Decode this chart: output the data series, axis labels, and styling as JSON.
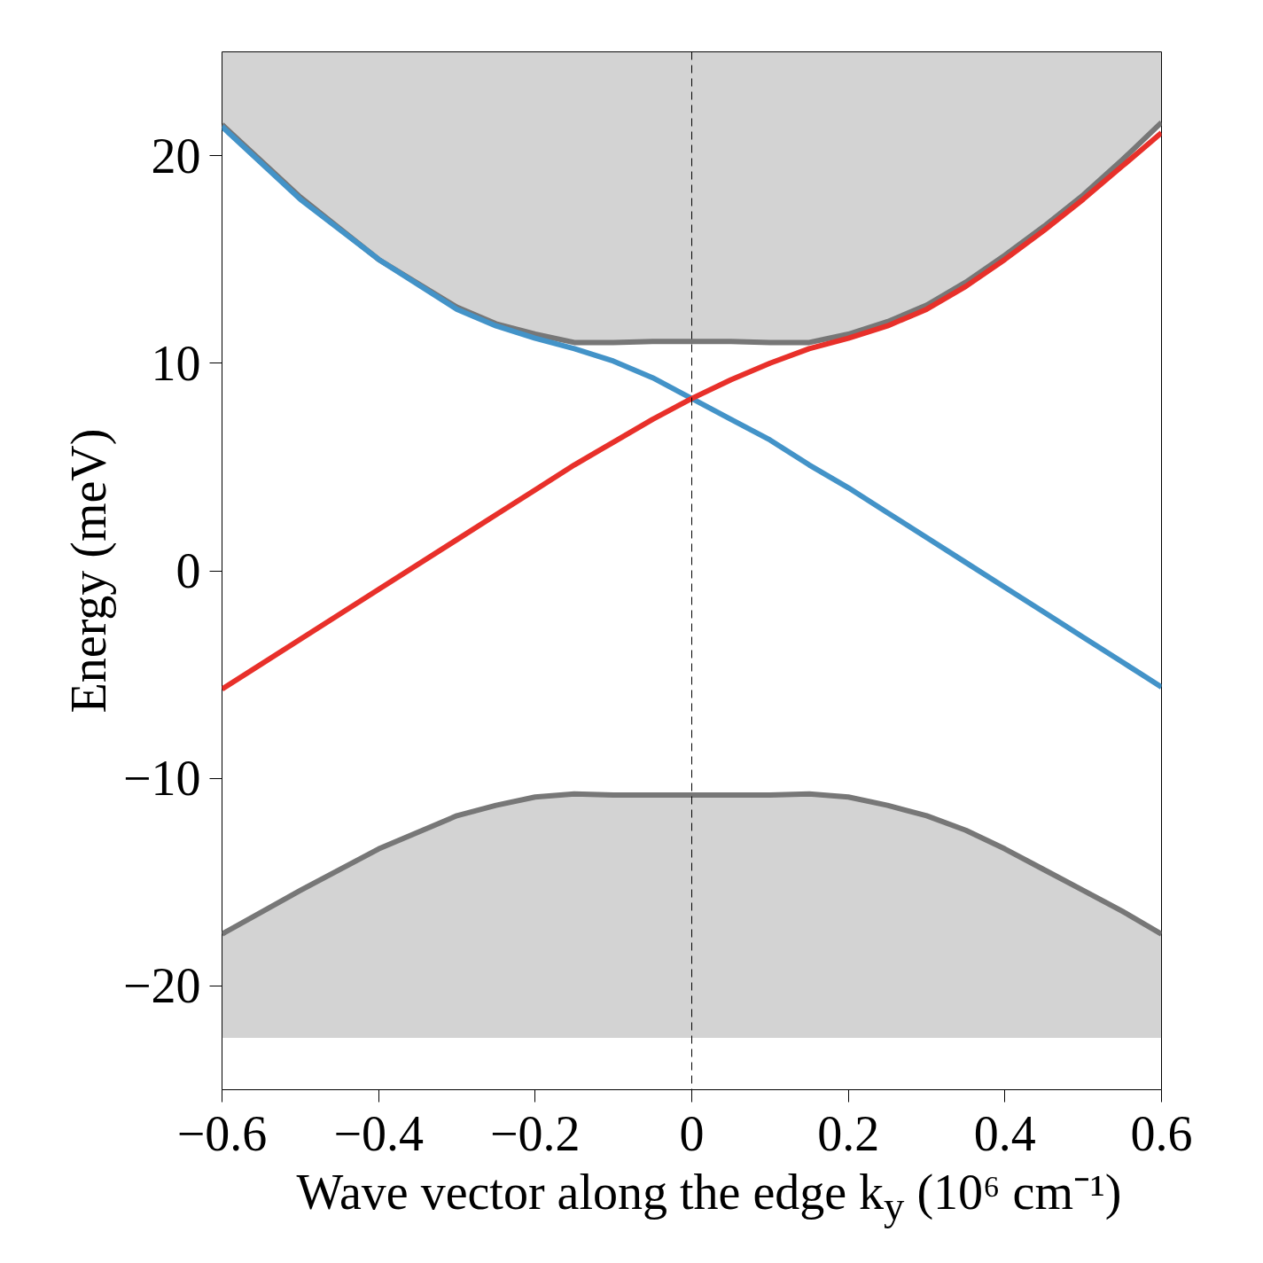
{
  "chart_data": {
    "type": "line",
    "xlabel": "Wave vector along the edge k$_{y}$ (10⁶ cm⁻¹)",
    "ylabel": "Energy (meV)",
    "x": [
      -0.6,
      -0.5,
      -0.4,
      -0.3,
      -0.25,
      -0.2,
      -0.15,
      -0.1,
      -0.05,
      0,
      0.05,
      0.1,
      0.15,
      0.2,
      0.25,
      0.3,
      0.35,
      0.4,
      0.45,
      0.5,
      0.55,
      0.6
    ],
    "series": [
      {
        "color": "#777777",
        "values": [
          21.5,
          18.0,
          15.0,
          12.7,
          11.9,
          11.4,
          11.0,
          11.0,
          11.05,
          11.05,
          11.05,
          11.0,
          11.0,
          11.4,
          12.0,
          12.8,
          13.9,
          15.2,
          16.6,
          18.1,
          19.8,
          21.6
        ],
        "lower": [
          21.5,
          18.0,
          15.0,
          12.7,
          11.9,
          11.4,
          11.0,
          11.0,
          11.05,
          11.05,
          11.05,
          11.0,
          11.0,
          11.4,
          12.0,
          12.8,
          13.9,
          15.2,
          16.6,
          18.1,
          19.8,
          21.6
        ],
        "upper": [
          25,
          25,
          25,
          25,
          25,
          25,
          25,
          25,
          25,
          25,
          25,
          25,
          25,
          25,
          25,
          25,
          25,
          25,
          25,
          25,
          25,
          25
        ]
      },
      {
        "color": "#777777",
        "values": [
          -17.5,
          -15.4,
          -13.4,
          -11.8,
          -11.3,
          -10.9,
          -10.75,
          -10.8,
          -10.8,
          -10.8,
          -10.8,
          -10.8,
          -10.75,
          -10.9,
          -11.3,
          -11.8,
          -12.5,
          -13.4,
          -14.4,
          -15.4,
          -16.4,
          -17.5
        ],
        "lower": [
          -22.5,
          -22.5,
          -22.5,
          -22.5,
          -22.5,
          -22.5,
          -22.5,
          -22.5,
          -22.5,
          -22.5,
          -22.5,
          -22.5,
          -22.5,
          -22.5,
          -22.5,
          -22.5,
          -22.5,
          -22.5,
          -22.5,
          -22.5,
          -22.5,
          -22.5
        ],
        "upper": [
          -17.5,
          -15.4,
          -13.4,
          -11.8,
          -11.3,
          -10.9,
          -10.75,
          -10.8,
          -10.8,
          -10.8,
          -10.8,
          -10.8,
          -10.75,
          -10.9,
          -11.3,
          -11.8,
          -12.5,
          -13.4,
          -14.4,
          -15.4,
          -16.4,
          -17.5
        ]
      },
      {
        "color": "#4393c8",
        "values": [
          21.4,
          17.9,
          15.0,
          12.6,
          11.8,
          11.2,
          10.7,
          10.1,
          9.3,
          8.3,
          7.3,
          6.3,
          5.1,
          4.0,
          2.8,
          1.6,
          0.4,
          -0.8,
          -2.0,
          -3.2,
          -4.4,
          -5.6
        ]
      },
      {
        "color": "#e8302a",
        "values": [
          -5.7,
          -3.3,
          -0.9,
          1.5,
          2.7,
          3.9,
          5.1,
          6.2,
          7.3,
          8.3,
          9.2,
          10.0,
          10.7,
          11.2,
          11.8,
          12.6,
          13.7,
          15.0,
          16.4,
          17.9,
          19.5,
          21.1
        ]
      }
    ],
    "xlim": [
      -0.6,
      0.6
    ],
    "ylim": [
      -25,
      25
    ],
    "xticks": [
      {
        "value": -0.6,
        "label": "−0.6"
      },
      {
        "value": -0.4,
        "label": "−0.4"
      },
      {
        "value": -0.2,
        "label": "−0.2"
      },
      0,
      0.2,
      0.4,
      0.6
    ],
    "yticks": [
      {
        "value": -20,
        "label": "−20"
      },
      {
        "value": -10,
        "label": "−10"
      },
      0,
      10,
      20
    ],
    "ref_lines": [
      {
        "axis": "x",
        "value": 0,
        "line_style": "dashed",
        "color": "#000000"
      }
    ],
    "grid": false
  }
}
